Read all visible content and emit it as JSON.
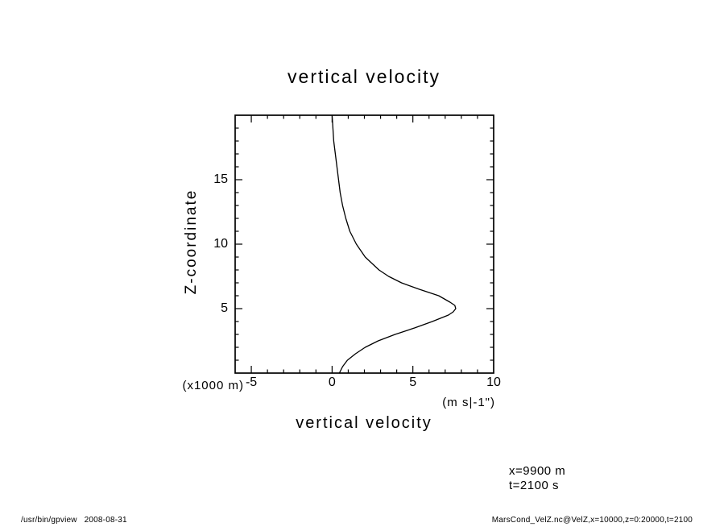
{
  "page": {
    "annotation_x": "x=9900 m",
    "annotation_t": "t=2100 s",
    "footer_left": "/usr/bin/gpview   2008-08-31",
    "footer_right": "MarsCond_VelZ.nc@VelZ,x=10000,z=0:20000,t=2100"
  },
  "chart_data": {
    "type": "line",
    "title": "vertical velocity",
    "xlabel": "vertical velocity",
    "x_units_label": "(m s|-1\")",
    "ylabel": "Z-coordinate",
    "y_units_label": "(x1000 m)",
    "xlim": [
      -6,
      10
    ],
    "ylim": [
      0,
      20
    ],
    "xticks": [
      -5,
      0,
      5,
      10
    ],
    "yticks": [
      5,
      10,
      15
    ],
    "minor_tick_step": 1,
    "grid": false,
    "background": "#ffffff",
    "line_color": "#000000",
    "series": [
      {
        "name": "VelZ",
        "x": [
          0.45,
          0.65,
          0.95,
          1.45,
          2.05,
          2.85,
          3.9,
          5.1,
          6.2,
          7.2,
          7.5,
          7.65,
          7.6,
          7.3,
          6.6,
          5.4,
          4.3,
          3.5,
          2.9,
          2.05,
          1.5,
          1.1,
          0.85,
          0.65,
          0.5,
          0.4,
          0.3,
          0.2,
          0.1,
          0.05,
          0.0
        ],
        "y": [
          0,
          0.5,
          1,
          1.5,
          2,
          2.5,
          3,
          3.5,
          4,
          4.5,
          4.75,
          5,
          5.25,
          5.5,
          6,
          6.5,
          7,
          7.5,
          8,
          9,
          10,
          11,
          12,
          13,
          14,
          15,
          16,
          17,
          18,
          19,
          20
        ]
      }
    ]
  }
}
